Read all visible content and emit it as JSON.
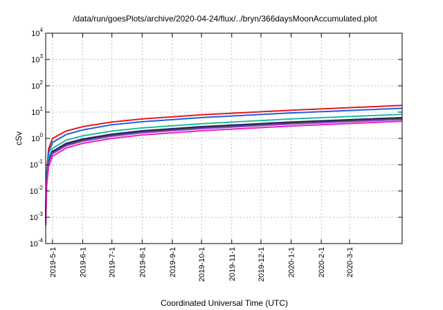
{
  "chart_data": {
    "type": "line",
    "title": "/data/run/goesPlots/archive/2020-04-24/flux/../bryn/366daysMoonAccumulated.plot",
    "xlabel": "Coordinated Universal Time (UTC)",
    "ylabel": "cSv",
    "yscale": "log",
    "ylim": [
      0.0001,
      10000
    ],
    "xlim": [
      "2019-04-24",
      "2020-04-24"
    ],
    "grid": true,
    "y_ticks": [
      {
        "value": 0.0001,
        "base": "10",
        "exp": "-4"
      },
      {
        "value": 0.001,
        "base": "10",
        "exp": "-3"
      },
      {
        "value": 0.01,
        "base": "10",
        "exp": "-2"
      },
      {
        "value": 0.1,
        "base": "10",
        "exp": "-1"
      },
      {
        "value": 1,
        "base": "10",
        "exp": "0"
      },
      {
        "value": 10,
        "base": "10",
        "exp": "1"
      },
      {
        "value": 100,
        "base": "10",
        "exp": "2"
      },
      {
        "value": 1000,
        "base": "10",
        "exp": "3"
      },
      {
        "value": 10000,
        "base": "10",
        "exp": "4"
      }
    ],
    "x_ticks": [
      {
        "date": "2019-05-01",
        "label": "2019-5-1"
      },
      {
        "date": "2019-06-01",
        "label": "2019-6-1"
      },
      {
        "date": "2019-07-01",
        "label": "2019-7-1"
      },
      {
        "date": "2019-08-01",
        "label": "2019-8-1"
      },
      {
        "date": "2019-09-01",
        "label": "2019-9-1"
      },
      {
        "date": "2019-10-01",
        "label": "2019-10-1"
      },
      {
        "date": "2019-11-01",
        "label": "2019-11-1"
      },
      {
        "date": "2019-12-01",
        "label": "2019-12-1"
      },
      {
        "date": "2020-01-01",
        "label": "2020-1-1"
      },
      {
        "date": "2020-02-01",
        "label": "2020-2-1"
      },
      {
        "date": "2020-03-01",
        "label": "2020-3-1"
      }
    ],
    "series": [
      {
        "color": "#e8161a",
        "x": [
          "2019-04-24",
          "2019-04-25",
          "2019-04-27",
          "2019-05-01",
          "2019-05-15",
          "2019-06-01",
          "2019-07-01",
          "2019-08-01",
          "2019-10-01",
          "2020-01-01",
          "2020-04-24"
        ],
        "y": [
          0.002,
          0.05,
          0.4,
          1.0,
          1.9,
          2.8,
          4.2,
          5.5,
          7.9,
          11.8,
          18
        ]
      },
      {
        "color": "#1f5fe0",
        "x": [
          "2019-04-24",
          "2019-04-25",
          "2019-04-27",
          "2019-05-01",
          "2019-05-15",
          "2019-06-01",
          "2019-07-01",
          "2019-08-01",
          "2019-10-01",
          "2020-01-01",
          "2020-04-24"
        ],
        "y": [
          0.0015,
          0.04,
          0.28,
          0.7,
          1.4,
          2.1,
          3.3,
          4.3,
          6.2,
          9.3,
          14
        ]
      },
      {
        "color": "#20b7a0",
        "x": [
          "2019-04-24",
          "2019-04-25",
          "2019-04-27",
          "2019-05-01",
          "2019-05-15",
          "2019-06-01",
          "2019-07-01",
          "2019-08-01",
          "2019-10-01",
          "2020-01-01",
          "2020-04-24"
        ],
        "y": [
          0.001,
          0.03,
          0.17,
          0.42,
          0.85,
          1.25,
          1.9,
          2.5,
          3.6,
          5.5,
          8.2
        ]
      },
      {
        "color": "#2a1f6e",
        "x": [
          "2019-04-24",
          "2019-04-25",
          "2019-04-27",
          "2019-05-01",
          "2019-05-15",
          "2019-06-01",
          "2019-07-01",
          "2019-08-01",
          "2019-10-01",
          "2020-01-01",
          "2020-04-24"
        ],
        "y": [
          0.0009,
          0.025,
          0.13,
          0.32,
          0.65,
          0.95,
          1.45,
          1.95,
          2.8,
          4.2,
          6.2
        ]
      },
      {
        "color": "#3a3a3a",
        "x": [
          "2019-04-24",
          "2019-04-25",
          "2019-04-27",
          "2019-05-01",
          "2019-05-15",
          "2019-06-01",
          "2019-07-01",
          "2019-08-01",
          "2019-10-01",
          "2020-01-01",
          "2020-04-24"
        ],
        "y": [
          0.0008,
          0.022,
          0.12,
          0.29,
          0.58,
          0.86,
          1.32,
          1.78,
          2.55,
          3.85,
          5.7
        ]
      },
      {
        "color": "#8b4fc8",
        "x": [
          "2019-04-24",
          "2019-04-25",
          "2019-04-27",
          "2019-05-01",
          "2019-05-15",
          "2019-06-01",
          "2019-07-01",
          "2019-08-01",
          "2019-10-01",
          "2020-01-01",
          "2020-04-24"
        ],
        "y": [
          0.0007,
          0.02,
          0.11,
          0.26,
          0.52,
          0.78,
          1.2,
          1.62,
          2.33,
          3.5,
          5.2
        ]
      },
      {
        "color": "#ee1ccd",
        "x": [
          "2019-04-24",
          "2019-04-25",
          "2019-04-27",
          "2019-05-01",
          "2019-05-15",
          "2019-06-01",
          "2019-07-01",
          "2019-08-01",
          "2019-10-01",
          "2020-01-01",
          "2020-04-24"
        ],
        "y": [
          0.0005,
          0.015,
          0.085,
          0.21,
          0.43,
          0.65,
          1.0,
          1.35,
          1.95,
          2.95,
          4.5
        ]
      }
    ]
  }
}
